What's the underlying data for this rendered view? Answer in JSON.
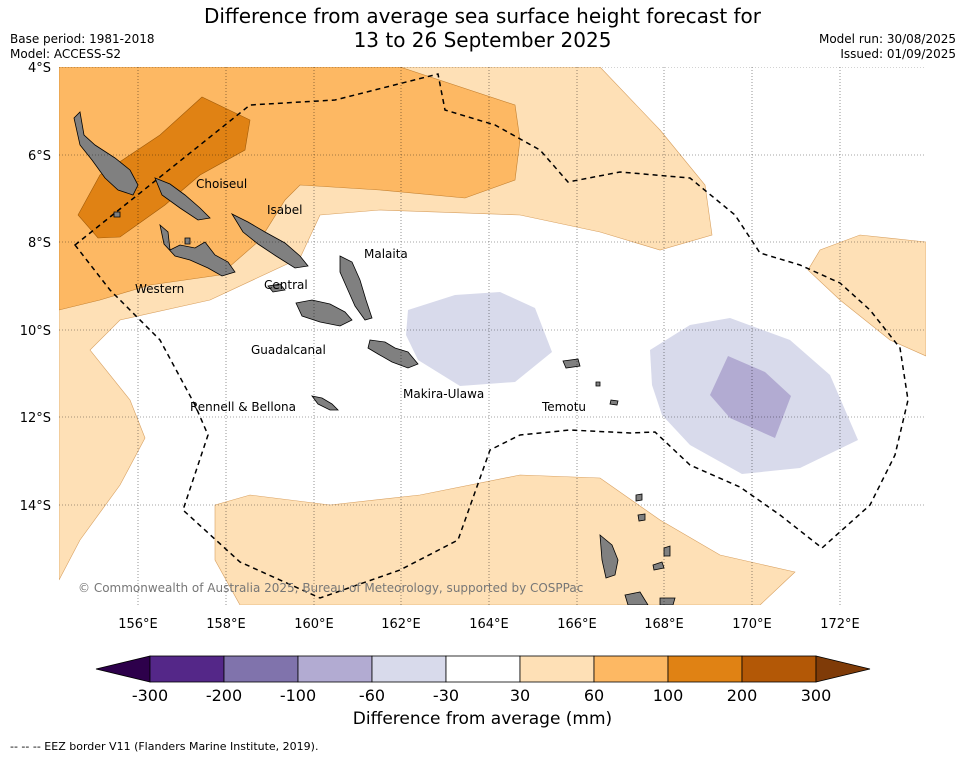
{
  "header": {
    "title_line1": "Difference from average sea surface height forecast for",
    "title_line2": "13 to 26 September 2025",
    "base_period": "Base period: 1981-2018",
    "model": "Model: ACCESS-S2",
    "model_run": "Model run: 30/08/2025",
    "issued": "Issued: 01/09/2025"
  },
  "map": {
    "lat_ticks": [
      "4°S",
      "6°S",
      "8°S",
      "10°S",
      "12°S",
      "14°S"
    ],
    "lon_ticks": [
      "156°E",
      "158°E",
      "160°E",
      "162°E",
      "164°E",
      "166°E",
      "168°E",
      "170°E",
      "172°E"
    ],
    "places": {
      "choiseul": "Choiseul",
      "isabel": "Isabel",
      "malaita": "Malaita",
      "western": "Western",
      "central": "Central",
      "guadalcanal": "Guadalcanal",
      "makira": "Makira-Ulawa",
      "temotu": "Temotu",
      "rennell": "Rennell & Bellona"
    },
    "copyright": "© Commonwealth of Australia 2025, Bureau of Meteorology, supported by COSPPac"
  },
  "colorbar": {
    "tick_labels": [
      "-300",
      "-200",
      "-100",
      "-60",
      "-30",
      "30",
      "60",
      "100",
      "200",
      "300"
    ],
    "colors": {
      "below_-300": "#2d004b",
      "-300_-200": "#542788",
      "-200_-100": "#8073ac",
      "-100_-60": "#b2abd2",
      "-60_-30": "#d8daeb",
      "-30_30": "#ffffff",
      "30_60": "#fee0b6",
      "60_100": "#fdb863",
      "100_200": "#e08214",
      "200_300": "#b35806",
      "above_300": "#7f3b08"
    },
    "label": "Difference from average (mm)"
  },
  "footer": {
    "eez_note": "--  --  -- EEZ border V11 (Flanders Marine Institute, 2019)."
  }
}
